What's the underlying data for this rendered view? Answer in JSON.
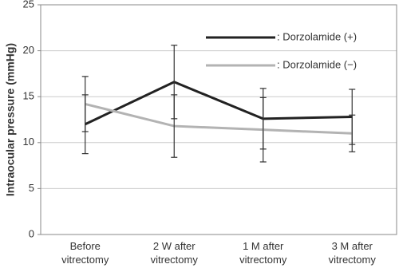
{
  "chart_data": {
    "type": "line",
    "y_label": "Intraocular pressure (mmHg)",
    "categories": [
      "Before vitrectomy",
      "2 W after vitrectomy",
      "1 M after vitrectomy",
      "3 M after vitrectomy"
    ],
    "series": [
      {
        "name": ": Dorzolamide (+)",
        "color": "#222222",
        "values": [
          12.0,
          16.6,
          12.6,
          12.8
        ],
        "errors": [
          3.2,
          4.0,
          3.3,
          3.0
        ]
      },
      {
        "name": ": Dorzolamide (−)",
        "color": "#b3b3b3",
        "values": [
          14.2,
          11.8,
          11.4,
          11.0
        ],
        "errors": [
          3.0,
          3.4,
          3.5,
          2.0
        ]
      }
    ],
    "ylim": [
      0,
      25
    ],
    "yticks": [
      0,
      5,
      10,
      15,
      20,
      25
    ],
    "grid": true
  }
}
